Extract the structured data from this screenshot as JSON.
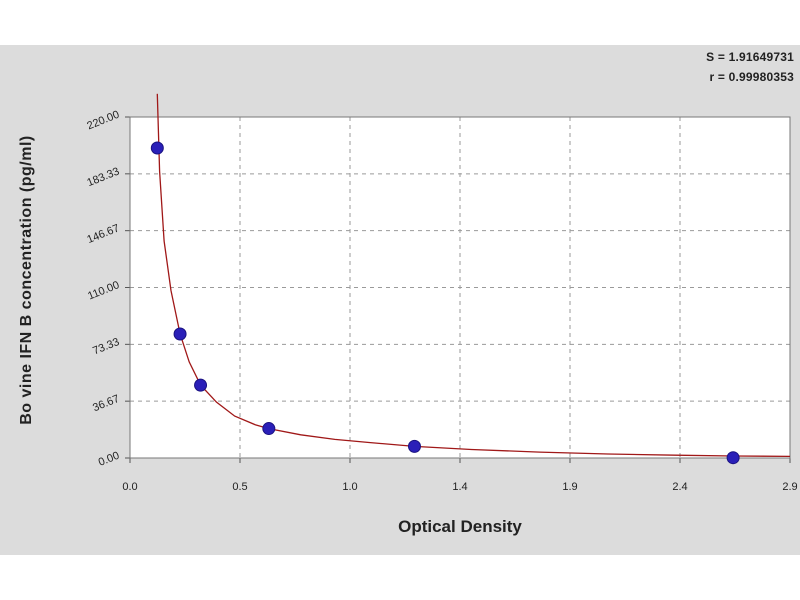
{
  "chart_data": {
    "type": "scatter",
    "title": "",
    "xlabel": "Optical Density",
    "ylabel": "Bo vine IFN B concentration (pg/ml)",
    "xlim": [
      0.0,
      2.9
    ],
    "ylim": [
      0.0,
      220.0
    ],
    "x_ticks": [
      "0.0",
      "0.5",
      "1.0",
      "1.4",
      "1.9",
      "2.4",
      "2.9"
    ],
    "y_ticks": [
      "0.00",
      "36.67",
      "73.33",
      "110.00",
      "146.67",
      "183.33",
      "220.00"
    ],
    "grid": true,
    "stats": {
      "s": "S = 1.91649731",
      "r": "r = 0.99980353"
    },
    "points": [
      {
        "x": 0.12,
        "y": 200
      },
      {
        "x": 0.22,
        "y": 80
      },
      {
        "x": 0.31,
        "y": 47
      },
      {
        "x": 0.61,
        "y": 19
      },
      {
        "x": 1.25,
        "y": 7.5
      },
      {
        "x": 2.65,
        "y": 0.2
      }
    ],
    "curve": [
      {
        "x": 0.12,
        "y": 235
      },
      {
        "x": 0.13,
        "y": 185
      },
      {
        "x": 0.15,
        "y": 140
      },
      {
        "x": 0.18,
        "y": 108
      },
      {
        "x": 0.22,
        "y": 80
      },
      {
        "x": 0.26,
        "y": 62
      },
      {
        "x": 0.31,
        "y": 47
      },
      {
        "x": 0.38,
        "y": 36
      },
      {
        "x": 0.46,
        "y": 27
      },
      {
        "x": 0.55,
        "y": 21.5
      },
      {
        "x": 0.61,
        "y": 19
      },
      {
        "x": 0.75,
        "y": 15
      },
      {
        "x": 0.9,
        "y": 12
      },
      {
        "x": 1.05,
        "y": 10
      },
      {
        "x": 1.25,
        "y": 7.5
      },
      {
        "x": 1.5,
        "y": 5.5
      },
      {
        "x": 1.8,
        "y": 3.8
      },
      {
        "x": 2.1,
        "y": 2.6
      },
      {
        "x": 2.4,
        "y": 1.8
      },
      {
        "x": 2.65,
        "y": 1.3
      },
      {
        "x": 2.9,
        "y": 1.0
      }
    ],
    "colors": {
      "point": "#2a1fb8",
      "curve": "#a01818",
      "panel": "#dcdcdc",
      "plot": "#ffffff",
      "grid": "#9a9a9a"
    }
  }
}
